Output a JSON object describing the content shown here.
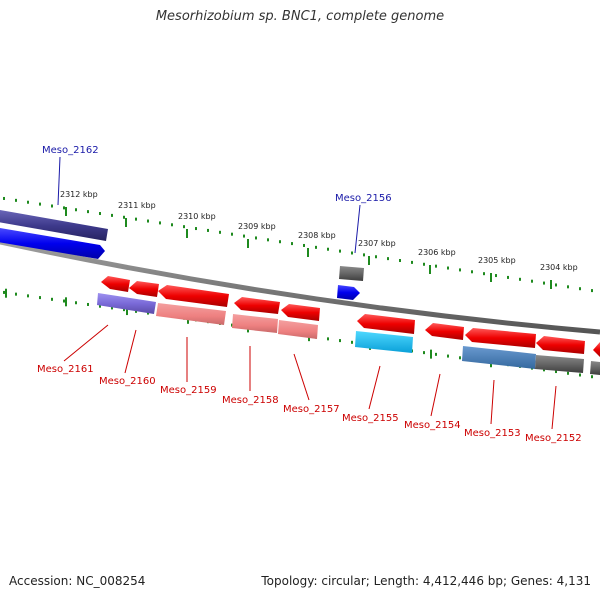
{
  "title": "Mesorhizobium sp. BNC1, complete genome",
  "accession": "Accession: NC_008254",
  "genome_info": "Topology: circular; Length: 4,412,446 bp; Genes: 4,131",
  "colors": {
    "backbone": "#888888",
    "tick": "#1e8a1e",
    "label_forward": "#1a1aa8",
    "label_reverse": "#cc0000"
  },
  "scale_ticks": [
    {
      "label": "2312 kbp"
    },
    {
      "label": "2311 kbp"
    },
    {
      "label": "2310 kbp"
    },
    {
      "label": "2309 kbp"
    },
    {
      "label": "2308 kbp"
    },
    {
      "label": "2307 kbp"
    },
    {
      "label": "2306 kbp"
    },
    {
      "label": "2305 kbp"
    },
    {
      "label": "2304 kbp"
    }
  ],
  "genes": [
    {
      "name": "Meso_2162",
      "strand": "forward"
    },
    {
      "name": "Meso_2156",
      "strand": "forward"
    },
    {
      "name": "Meso_2161",
      "strand": "reverse"
    },
    {
      "name": "Meso_2160",
      "strand": "reverse"
    },
    {
      "name": "Meso_2159",
      "strand": "reverse"
    },
    {
      "name": "Meso_2158",
      "strand": "reverse"
    },
    {
      "name": "Meso_2157",
      "strand": "reverse"
    },
    {
      "name": "Meso_2155",
      "strand": "reverse"
    },
    {
      "name": "Meso_2154",
      "strand": "reverse"
    },
    {
      "name": "Meso_2153",
      "strand": "reverse"
    },
    {
      "name": "Meso_2152",
      "strand": "reverse"
    }
  ]
}
